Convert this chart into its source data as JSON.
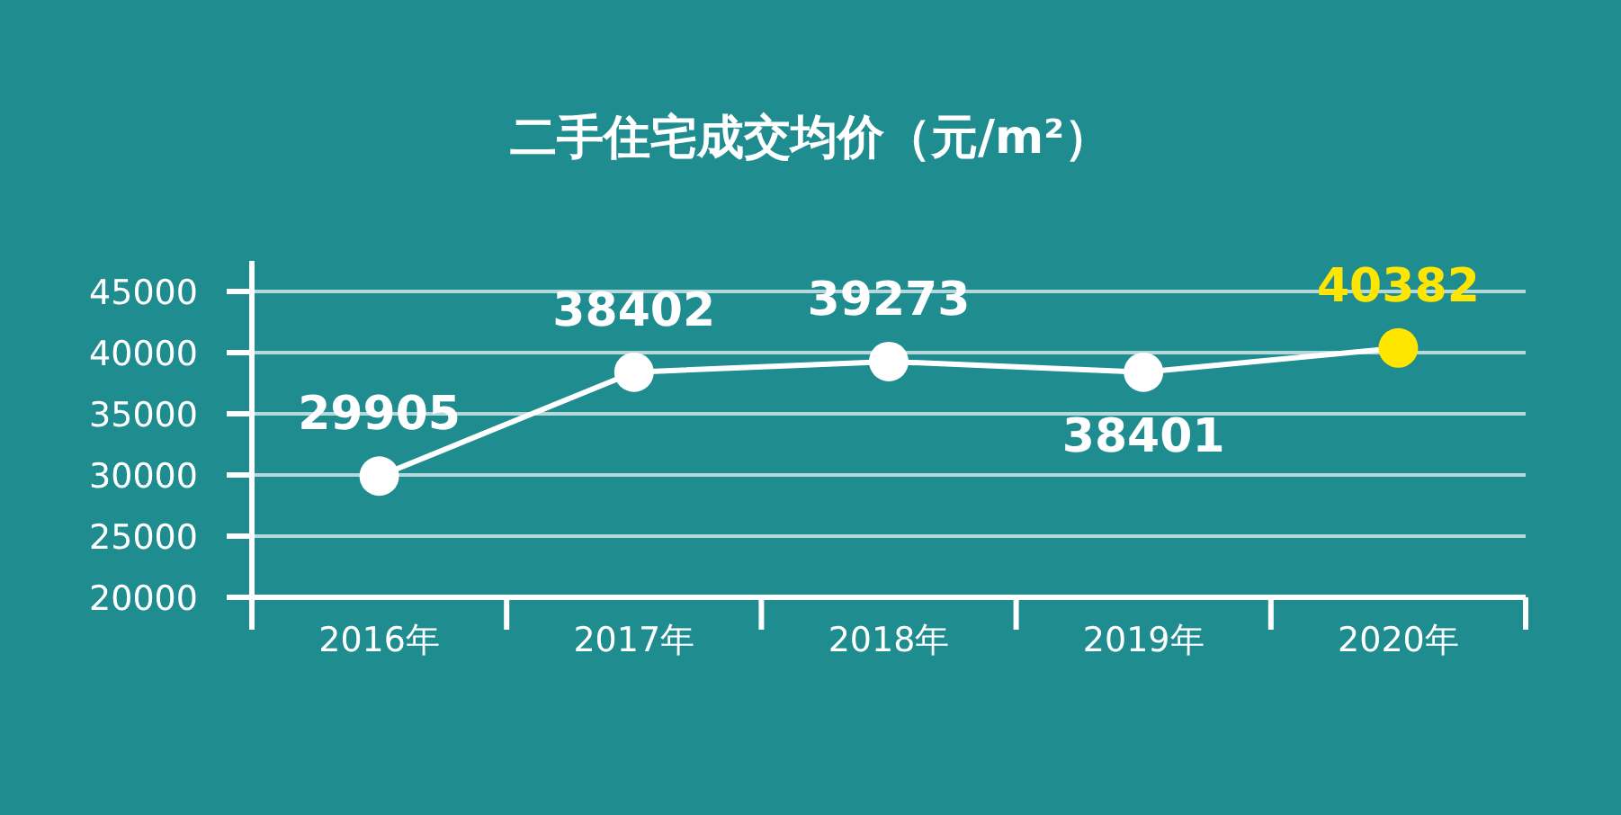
{
  "chart_data": {
    "type": "line",
    "title": "二手住宅成交均价（元/m²）",
    "categories": [
      "2016年",
      "2017年",
      "2018年",
      "2019年",
      "2020年"
    ],
    "series": [
      {
        "color": "#ffffff",
        "values": [
          29905,
          38402,
          39273,
          38401,
          40382
        ],
        "colors": [
          "#ffffff",
          "#ffffff",
          "#ffffff",
          "#ffffff",
          "#ffe600"
        ]
      }
    ],
    "ylim": [
      20000,
      45000
    ],
    "yticks": [
      20000,
      25000,
      30000,
      35000,
      40000,
      45000
    ],
    "grid": "y",
    "marker": "circle",
    "line_style": "solid",
    "data_labels": true
  }
}
